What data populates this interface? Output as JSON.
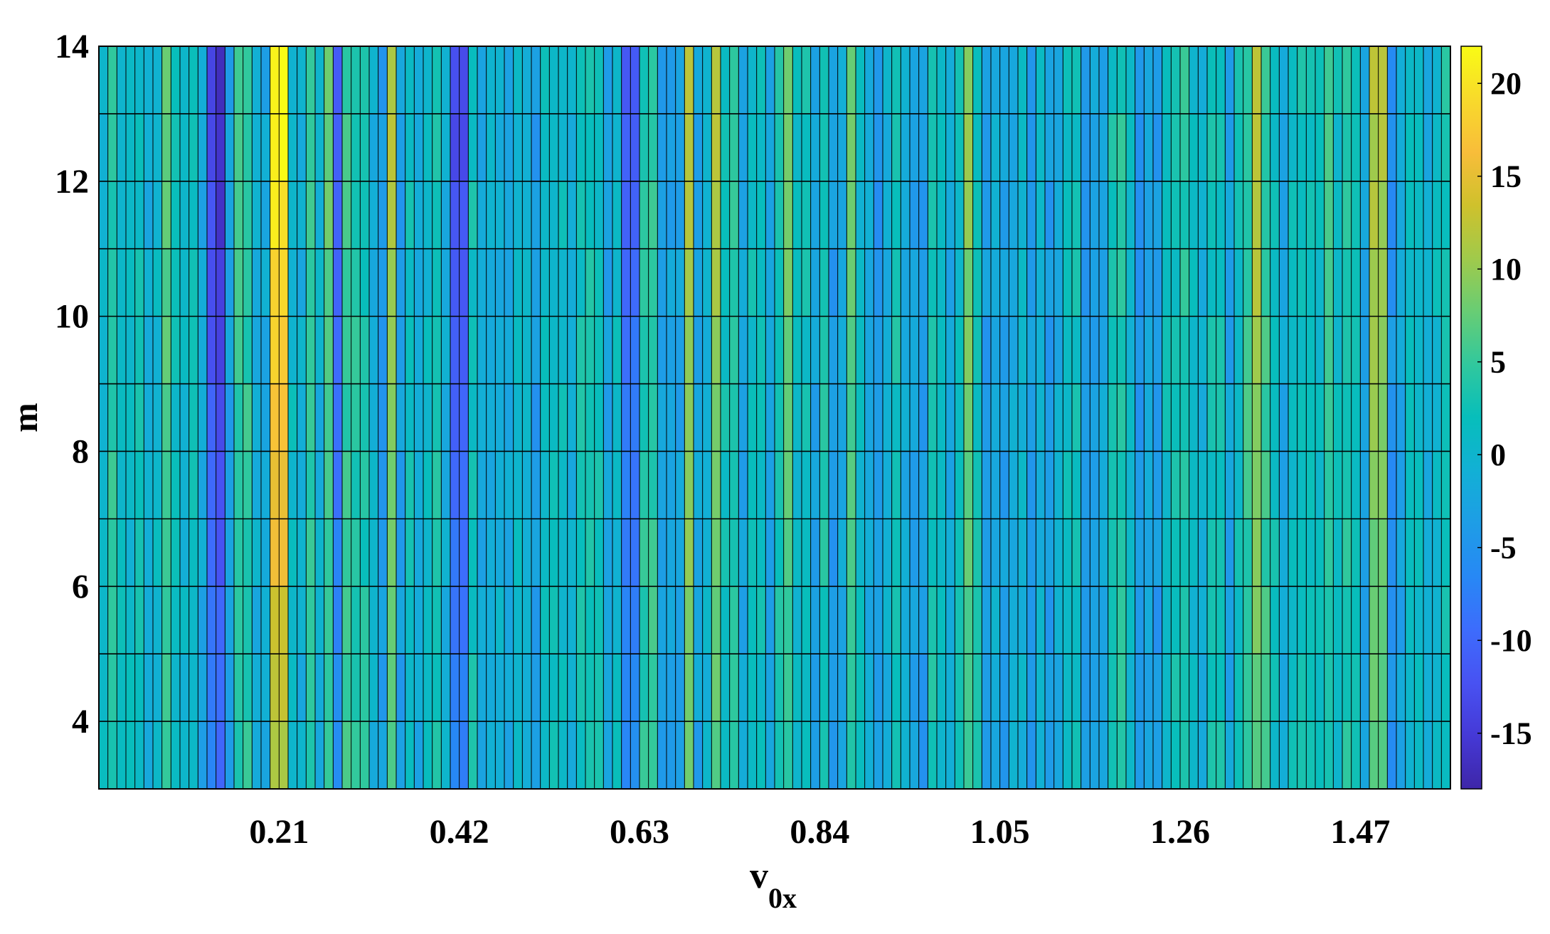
{
  "chart_data": {
    "type": "heatmap",
    "title": "",
    "xlabel": "v",
    "xlabel_subscript": "0x",
    "ylabel": "m",
    "xlim": [
      0,
      1.575
    ],
    "ylim": [
      3,
      14
    ],
    "x_ticks": [
      0.21,
      0.42,
      0.63,
      0.84,
      1.05,
      1.26,
      1.47
    ],
    "x_tick_labels": [
      "0.21",
      "0.42",
      "0.63",
      "0.84",
      "1.05",
      "1.26",
      "1.47"
    ],
    "y_ticks": [
      4,
      6,
      8,
      10,
      12,
      14
    ],
    "y_tick_labels": [
      "4",
      "6",
      "8",
      "10",
      "12",
      "14"
    ],
    "colorbar": {
      "colormap": "parula",
      "range": [
        -18,
        22
      ],
      "ticks": [
        -15,
        -10,
        -5,
        0,
        5,
        10,
        15,
        20
      ],
      "tick_labels": [
        "-15",
        "-10",
        "-5",
        "0",
        "5",
        "10",
        "15",
        "20"
      ]
    },
    "grid": "cell edges drawn in black",
    "x_bins": 150,
    "y_bins": 11,
    "column_profiles": [
      {
        "x": 0.08,
        "value": 8
      },
      {
        "x": 0.13,
        "value": -14
      },
      {
        "x": 0.14,
        "value": -17
      },
      {
        "x": 0.16,
        "value": 6
      },
      {
        "x": 0.21,
        "value": 22
      },
      {
        "x": 0.27,
        "value": 8
      },
      {
        "x": 0.28,
        "value": -11
      },
      {
        "x": 0.34,
        "value": 12
      },
      {
        "x": 0.42,
        "value": -13
      },
      {
        "x": 0.62,
        "value": -11
      },
      {
        "x": 0.69,
        "value": 13
      },
      {
        "x": 0.72,
        "value": 12
      },
      {
        "x": 0.8,
        "value": 9
      },
      {
        "x": 0.88,
        "value": 8
      },
      {
        "x": 1.01,
        "value": 10
      },
      {
        "x": 1.35,
        "value": 13
      },
      {
        "x": 1.43,
        "value": 6
      },
      {
        "x": 1.49,
        "value": 12
      }
    ]
  }
}
